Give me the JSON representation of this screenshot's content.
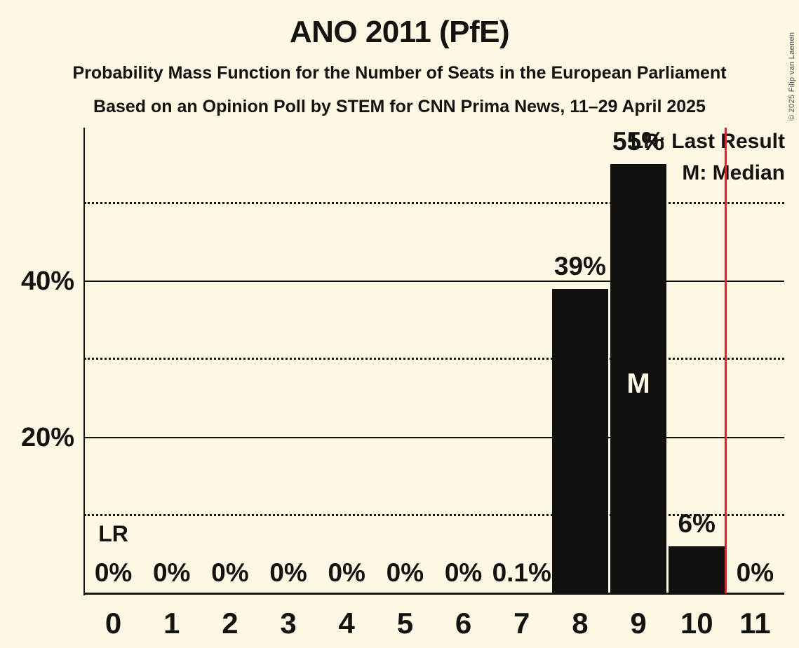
{
  "title": "ANO 2011 (PfE)",
  "subtitles": [
    "Probability Mass Function for the Number of Seats in the European Parliament",
    "Based on an Opinion Poll by STEM for CNN Prima News, 11–29 April 2025"
  ],
  "copyright": "© 2025 Filip van Laenen",
  "legend": {
    "last_result": "LR: Last Result",
    "median": "M: Median"
  },
  "annotations": {
    "last_result_label": "LR",
    "median_label": "M"
  },
  "colors": {
    "background": "#FCF8E3",
    "ink": "#14130F",
    "bar": "#121110",
    "last_result_line": "#EE1C23",
    "median_text": "#FCF8E3"
  },
  "y_axis": {
    "ticks": [
      {
        "pct": 20,
        "label": "20%"
      },
      {
        "pct": 40,
        "label": "40%"
      }
    ],
    "solid_gridlines_pct": [
      20,
      40
    ],
    "dotted_gridlines_pct": [
      10,
      30,
      50
    ],
    "top_pct": 59.7
  },
  "chart_data": {
    "type": "bar",
    "title": "ANO 2011 (PfE)",
    "categories": [
      "0",
      "1",
      "2",
      "3",
      "4",
      "5",
      "6",
      "7",
      "8",
      "9",
      "10",
      "11"
    ],
    "values": [
      0,
      0,
      0,
      0,
      0,
      0,
      0,
      0.1,
      39,
      55,
      6,
      0
    ],
    "value_labels": [
      "0%",
      "0%",
      "0%",
      "0%",
      "0%",
      "0%",
      "0%",
      "0.1%",
      "39%",
      "55%",
      "6%",
      "0%"
    ],
    "ylim": [
      0,
      59.7
    ],
    "gridlines": {
      "solid_pct": [
        20,
        40
      ],
      "dotted_pct": [
        10,
        30,
        50
      ]
    },
    "median_category": "9",
    "last_result_label_category": "0",
    "last_result_line_after_category": "10",
    "legend": [
      "LR: Last Result",
      "M: Median"
    ],
    "legend_position": "top-right"
  }
}
